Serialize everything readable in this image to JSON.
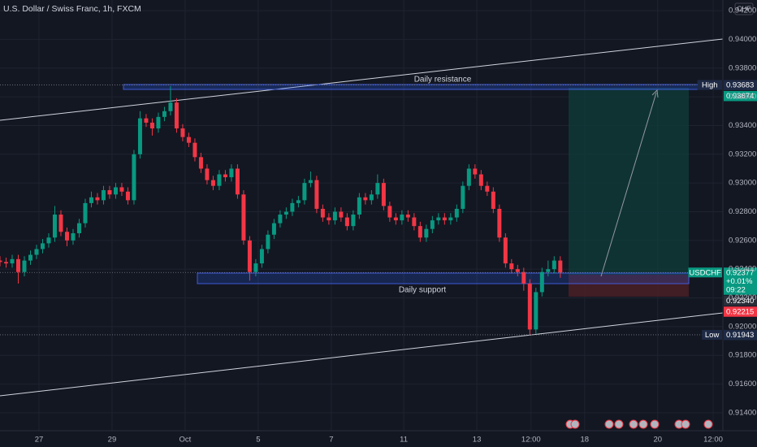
{
  "chart_data": {
    "type": "candlestick",
    "title": "U.S. Dollar / Swiss Franc, 1h, FXCM",
    "currency": "CHF",
    "open": [
      0.9246,
      0.9245,
      0.9244,
      0.9247,
      0.9238,
      0.9246,
      0.925,
      0.9254,
      0.9258,
      0.9262,
      0.9278,
      0.9266,
      0.926,
      0.9265,
      0.9272,
      0.9286,
      0.929,
      0.9288,
      0.9295,
      0.9292,
      0.9297,
      0.9294,
      0.9288,
      0.932,
      0.9345,
      0.9342,
      0.9338,
      0.9346,
      0.935,
      0.9356,
      0.9338,
      0.9332,
      0.9328,
      0.9318,
      0.931,
      0.9302,
      0.9298,
      0.9306,
      0.9304,
      0.931,
      0.9292,
      0.926,
      0.9238,
      0.9244,
      0.9254,
      0.9264,
      0.9272,
      0.9278,
      0.928,
      0.9286,
      0.9288,
      0.93,
      0.9302,
      0.9282,
      0.9276,
      0.9274,
      0.928,
      0.9276,
      0.927,
      0.9278,
      0.929,
      0.9288,
      0.9292,
      0.93,
      0.9284,
      0.9276,
      0.9274,
      0.9278,
      0.9276,
      0.927,
      0.9262,
      0.9268,
      0.9274,
      0.9276,
      0.9274,
      0.9276,
      0.9282,
      0.9298,
      0.931,
      0.9306,
      0.9298,
      0.9294,
      0.9282,
      0.9262,
      0.9244,
      0.924,
      0.9238,
      0.923,
      0.9198,
      0.9224,
      0.9238,
      0.924,
      0.9246
    ],
    "high": [
      0.9249,
      0.9248,
      0.925,
      0.925,
      0.9249,
      0.9253,
      0.9257,
      0.9261,
      0.9265,
      0.9284,
      0.9281,
      0.9269,
      0.9268,
      0.9275,
      0.9289,
      0.9294,
      0.9293,
      0.9298,
      0.9298,
      0.93,
      0.93,
      0.9297,
      0.9323,
      0.935,
      0.9348,
      0.9345,
      0.9349,
      0.9353,
      0.93674,
      0.9359,
      0.9341,
      0.9335,
      0.9331,
      0.9321,
      0.9313,
      0.9305,
      0.9309,
      0.9309,
      0.9313,
      0.9313,
      0.9295,
      0.9263,
      0.9247,
      0.9257,
      0.9267,
      0.9275,
      0.9281,
      0.9283,
      0.9289,
      0.9291,
      0.9303,
      0.9308,
      0.9305,
      0.9285,
      0.9279,
      0.9283,
      0.9283,
      0.9279,
      0.9281,
      0.9293,
      0.9293,
      0.9295,
      0.9306,
      0.9303,
      0.9287,
      0.9279,
      0.9281,
      0.9281,
      0.9279,
      0.9273,
      0.9271,
      0.9277,
      0.9279,
      0.9279,
      0.9279,
      0.9285,
      0.9301,
      0.9313,
      0.9313,
      0.9309,
      0.9301,
      0.9297,
      0.9285,
      0.9265,
      0.9247,
      0.9243,
      0.9241,
      0.9233,
      0.9227,
      0.9241,
      0.9246,
      0.9249,
      0.9249
    ],
    "low": [
      0.9242,
      0.9241,
      0.9241,
      0.923,
      0.9235,
      0.9243,
      0.9247,
      0.9251,
      0.9255,
      0.9259,
      0.9263,
      0.9256,
      0.9257,
      0.9262,
      0.9269,
      0.9283,
      0.9285,
      0.9285,
      0.9289,
      0.9289,
      0.9291,
      0.9285,
      0.9285,
      0.9317,
      0.9339,
      0.9333,
      0.9335,
      0.9343,
      0.9347,
      0.9335,
      0.9329,
      0.9325,
      0.9315,
      0.9307,
      0.9299,
      0.9295,
      0.9295,
      0.9301,
      0.9301,
      0.9289,
      0.9257,
      0.9232,
      0.9235,
      0.9241,
      0.9251,
      0.9261,
      0.9269,
      0.9275,
      0.9277,
      0.9283,
      0.9285,
      0.9297,
      0.9279,
      0.9273,
      0.9271,
      0.9271,
      0.9273,
      0.9267,
      0.9267,
      0.9275,
      0.9285,
      0.9285,
      0.9289,
      0.9281,
      0.9273,
      0.9271,
      0.9271,
      0.9273,
      0.9267,
      0.9259,
      0.9259,
      0.9265,
      0.9271,
      0.9271,
      0.9271,
      0.9273,
      0.9279,
      0.9295,
      0.9303,
      0.9295,
      0.9291,
      0.9279,
      0.9259,
      0.9241,
      0.9237,
      0.9235,
      0.9225,
      0.91943,
      0.9195,
      0.9221,
      0.9235,
      0.9237,
      0.9234
    ],
    "close": [
      0.9245,
      0.9244,
      0.9247,
      0.9238,
      0.9246,
      0.925,
      0.9254,
      0.9258,
      0.9262,
      0.9278,
      0.9266,
      0.926,
      0.9265,
      0.9272,
      0.9286,
      0.929,
      0.9288,
      0.9295,
      0.9292,
      0.9297,
      0.9294,
      0.9288,
      0.932,
      0.9345,
      0.9342,
      0.9338,
      0.9346,
      0.935,
      0.9356,
      0.9338,
      0.9332,
      0.9328,
      0.9318,
      0.931,
      0.9302,
      0.9298,
      0.9306,
      0.9304,
      0.931,
      0.9292,
      0.926,
      0.9238,
      0.9244,
      0.9254,
      0.9264,
      0.9272,
      0.9278,
      0.928,
      0.9286,
      0.9288,
      0.93,
      0.9302,
      0.9282,
      0.9276,
      0.9274,
      0.928,
      0.9276,
      0.927,
      0.9278,
      0.929,
      0.9288,
      0.9292,
      0.93,
      0.9284,
      0.9276,
      0.9274,
      0.9278,
      0.9276,
      0.927,
      0.9262,
      0.9268,
      0.9274,
      0.9276,
      0.9274,
      0.9276,
      0.9282,
      0.9298,
      0.931,
      0.9306,
      0.9298,
      0.9294,
      0.9282,
      0.9262,
      0.9244,
      0.924,
      0.9238,
      0.923,
      0.9198,
      0.9224,
      0.9238,
      0.924,
      0.9246,
      0.92377
    ],
    "up_color": "#089981",
    "down_color": "#f23645",
    "ylim": [
      0.91275,
      0.94274
    ],
    "yticks": [
      {
        "value": 0.942,
        "label": "0.94200"
      },
      {
        "value": 0.94,
        "label": "0.94000"
      },
      {
        "value": 0.938,
        "label": "0.93800"
      },
      {
        "value": 0.936,
        "label": "0.93600"
      },
      {
        "value": 0.934,
        "label": "0.93400"
      },
      {
        "value": 0.932,
        "label": "0.93200"
      },
      {
        "value": 0.93,
        "label": "0.93000"
      },
      {
        "value": 0.928,
        "label": "0.92800"
      },
      {
        "value": 0.926,
        "label": "0.92600"
      },
      {
        "value": 0.924,
        "label": "0.92400"
      },
      {
        "value": 0.922,
        "label": "0.92200"
      },
      {
        "value": 0.92,
        "label": "0.92000"
      },
      {
        "value": 0.918,
        "label": "0.91800"
      },
      {
        "value": 0.916,
        "label": "0.91600"
      },
      {
        "value": 0.914,
        "label": "0.91400"
      }
    ],
    "xlim": [
      0,
      118.7
    ],
    "xticks": [
      {
        "value": 6.4,
        "label": "27"
      },
      {
        "value": 18.4,
        "label": "29"
      },
      {
        "value": 30.4,
        "label": "Oct"
      },
      {
        "value": 42.4,
        "label": "5"
      },
      {
        "value": 54.4,
        "label": "7"
      },
      {
        "value": 66.3,
        "label": "11"
      },
      {
        "value": 78.3,
        "label": "13"
      },
      {
        "value": 87.2,
        "label": "12:00"
      },
      {
        "value": 96,
        "label": "18"
      },
      {
        "value": 108,
        "label": "20"
      },
      {
        "value": 117.1,
        "label": "12:00"
      }
    ],
    "grid": true,
    "annotations": [
      "Daily resistance",
      "Daily support"
    ],
    "price_markers": [
      {
        "name": "High",
        "value": 0.93683,
        "color": "#1e2a45"
      },
      {
        "value": 0.93674,
        "color": "#089981"
      },
      {
        "name": "USDCHF",
        "value": 0.92377,
        "change": "+0.01%",
        "time": "09:22",
        "color": "#089981"
      },
      {
        "value": 0.9234,
        "label": "0.92340",
        "color": "#2a2e39"
      },
      {
        "value": 0.92215,
        "color": "#f23645"
      },
      {
        "name": "Low",
        "value": 0.91943,
        "color": "#1e2a45"
      }
    ]
  }
}
